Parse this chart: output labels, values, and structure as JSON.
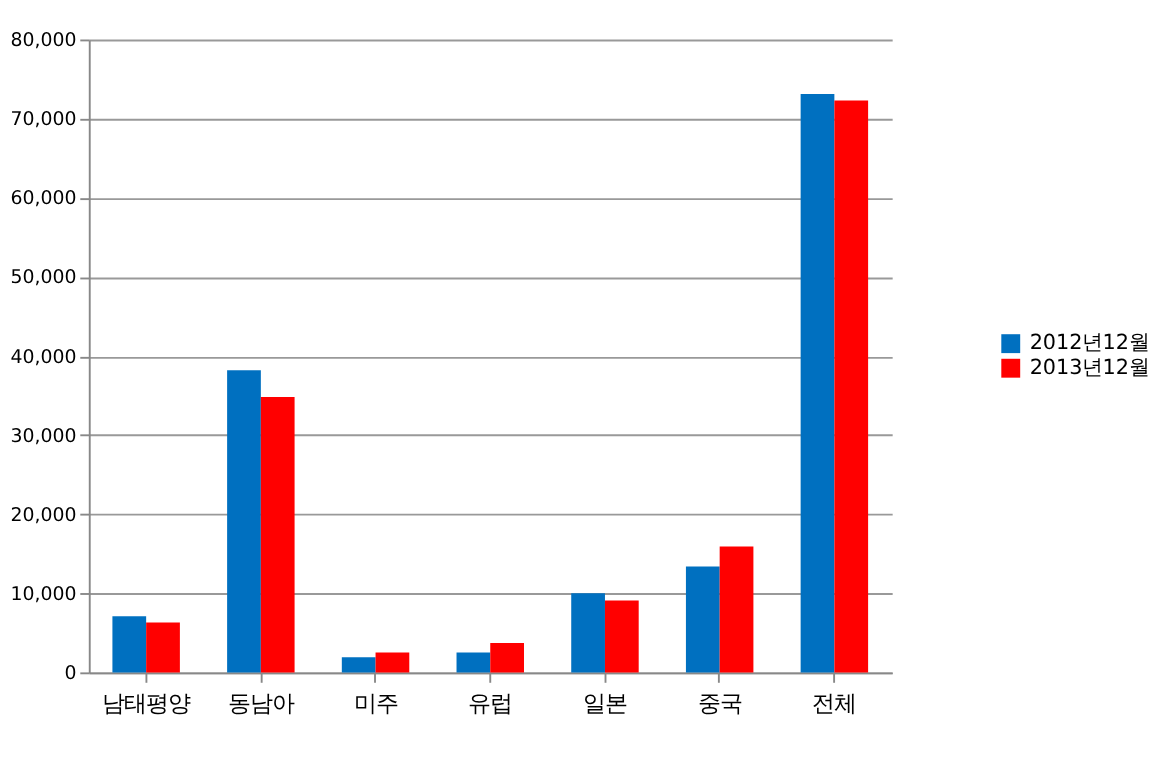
{
  "chart_data": {
    "type": "bar",
    "categories": [
      "남태평양",
      "동남아",
      "미주",
      "유럽",
      "일본",
      "중국",
      "전체"
    ],
    "series": [
      {
        "name": "2012년12월",
        "color": "#0070c0",
        "values": [
          7100,
          38200,
          1900,
          2500,
          10000,
          13400,
          73100
        ]
      },
      {
        "name": "2013년12월",
        "color": "#ff0000",
        "values": [
          6300,
          34800,
          2500,
          3700,
          9100,
          15900,
          72300
        ]
      }
    ],
    "ylim": [
      0,
      80000
    ],
    "yticks": [
      0,
      {
        "value": 10000,
        "label": "10,000"
      },
      {
        "value": 20000,
        "label": "20,000"
      },
      {
        "value": 30000,
        "label": "30,000"
      },
      {
        "value": 40000,
        "label": "40,000"
      },
      {
        "value": 50000,
        "label": "50,000"
      },
      {
        "value": 60000,
        "label": "60,000"
      },
      {
        "value": 70000,
        "label": "70,000"
      },
      {
        "value": 80000,
        "label": "80,000"
      }
    ],
    "grid": "y",
    "legend": "right"
  }
}
